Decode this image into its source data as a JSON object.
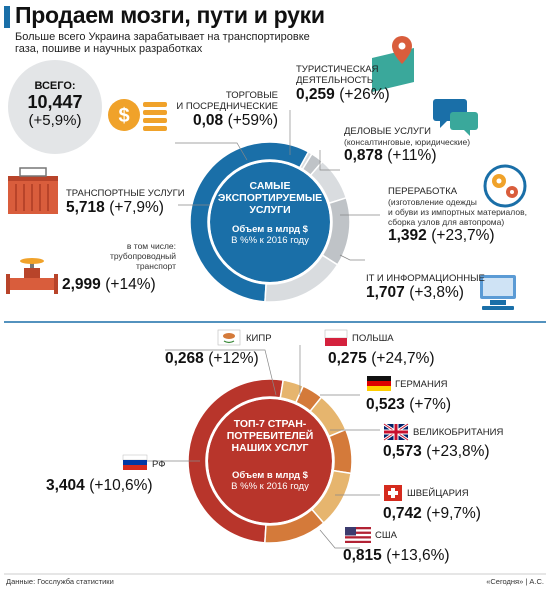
{
  "header": {
    "title": "Продаем мозги, пути и руки",
    "subtitle_line1": "Больше всего Украина зарабатывает на транспортировке",
    "subtitle_line2": "газа, пошиве и научных разработках"
  },
  "total": {
    "label": "ВСЕГО:",
    "value": "10,447",
    "change": "(+5,9%)"
  },
  "donut1": {
    "center_line1": "САМЫЕ",
    "center_line2": "ЭКСПОРТИРУЕМЫЕ",
    "center_line3": "УСЛУГИ",
    "note_line1": "Объем в млрд $",
    "note_line2": "В %% к 2016 году"
  },
  "donut2": {
    "center_line1": "ТОП-7 СТРАН-",
    "center_line2": "ПОТРЕБИТЕЛЕЙ",
    "center_line3": "НАШИХ УСЛУГ",
    "note_line1": "Объем в млрд $",
    "note_line2": "В %% к 2016 году"
  },
  "services": {
    "trade": {
      "label1": "ТОРГОВЫЕ",
      "label2": "И ПОСРЕДНИЧЕСКИЕ",
      "value": "0,08",
      "change": "(+59%)"
    },
    "tourism": {
      "label1": "ТУРИСТИЧЕСКАЯ",
      "label2": "ДЕЯТЕЛЬНОСТЬ",
      "value": "0,259",
      "change": "(+26%)"
    },
    "business": {
      "label1": "ДЕЛОВЫЕ УСЛУГИ",
      "label2": "(консалтинговые, юридические)",
      "value": "0,878",
      "change": "(+11%)"
    },
    "transport": {
      "label1": "ТРАНСПОРТНЫЕ УСЛУГИ",
      "value": "5,718",
      "change": "(+7,9%)"
    },
    "pipeline": {
      "label1": "в том числе:",
      "label2": "трубопроводный",
      "label3": "транспорт",
      "value": "2,999",
      "change": "(+14%)"
    },
    "processing": {
      "label1": "ПЕРЕРАБОТКА",
      "label2": "(изготовление одежды",
      "label3": "и обуви из импортных материалов,",
      "label4": "сборка узлов для автопрома)",
      "value": "1,392",
      "change": "(+23,7%)"
    },
    "it": {
      "label1": "IT И ИНФОРМАЦИОННЫЕ",
      "value": "1,707",
      "change": "(+3,8%)"
    }
  },
  "countries": {
    "cyprus": {
      "label": "КИПР",
      "value": "0,268",
      "change": "(+12%)"
    },
    "poland": {
      "label": "ПОЛЬША",
      "value": "0,275",
      "change": "(+24,7%)"
    },
    "germany": {
      "label": "ГЕРМАНИЯ",
      "value": "0,523",
      "change": "(+7%)"
    },
    "uk": {
      "label": "ВЕЛИКОБРИТАНИЯ",
      "value": "0,573",
      "change": "(+23,8%)"
    },
    "russia": {
      "label": "РФ",
      "value": "3,404",
      "change": "(+10,6%)"
    },
    "switzerland": {
      "label": "ШВЕЙЦАРИЯ",
      "value": "0,742",
      "change": "(+9,7%)"
    },
    "usa": {
      "label": "США",
      "value": "0,815",
      "change": "(+13,6%)"
    }
  },
  "footer": {
    "source": "Данные: Госслужба статистики",
    "credit": "«Сегодня» | А.С."
  },
  "colors": {
    "blue": "#1a6fa8",
    "darkblue": "#1f4e79",
    "gray": "#bfc3c7",
    "lightgray": "#d9dcdf",
    "red": "#b8352b",
    "orange": "#d47a3a",
    "sand": "#e6b56e",
    "teal": "#3aa89b",
    "gold": "#f0a22a",
    "brick": "#d95d3c"
  },
  "chart_data": [
    {
      "type": "pie",
      "title": "САМЫЕ ЭКСПОРТИРУЕМЫЕ УСЛУГИ",
      "unit": "млрд $",
      "categories": [
        "ТРАНСПОРТНЫЕ УСЛУГИ",
        "ТОРГОВЫЕ И ПОСРЕДНИЧЕСКИЕ",
        "ТУРИСТИЧЕСКАЯ ДЕЯТЕЛЬНОСТЬ",
        "ДЕЛОВЫЕ УСЛУГИ",
        "ПЕРЕРАБОТКА",
        "IT И ИНФОРМАЦИОННЫЕ"
      ],
      "values": [
        5.718,
        0.08,
        0.259,
        0.878,
        1.392,
        1.707
      ],
      "change_pct": [
        7.9,
        59,
        26,
        11,
        23.7,
        3.8
      ],
      "total": 10.447
    },
    {
      "type": "pie",
      "title": "ТОП-7 СТРАН-ПОТРЕБИТЕЛЕЙ НАШИХ УСЛУГ",
      "unit": "млрд $",
      "categories": [
        "РФ",
        "КИПР",
        "ПОЛЬША",
        "ГЕРМАНИЯ",
        "ВЕЛИКОБРИТАНИЯ",
        "ШВЕЙЦАРИЯ",
        "США"
      ],
      "values": [
        3.404,
        0.268,
        0.275,
        0.523,
        0.573,
        0.742,
        0.815
      ],
      "change_pct": [
        10.6,
        12,
        24.7,
        7,
        23.8,
        9.7,
        13.6
      ]
    }
  ]
}
